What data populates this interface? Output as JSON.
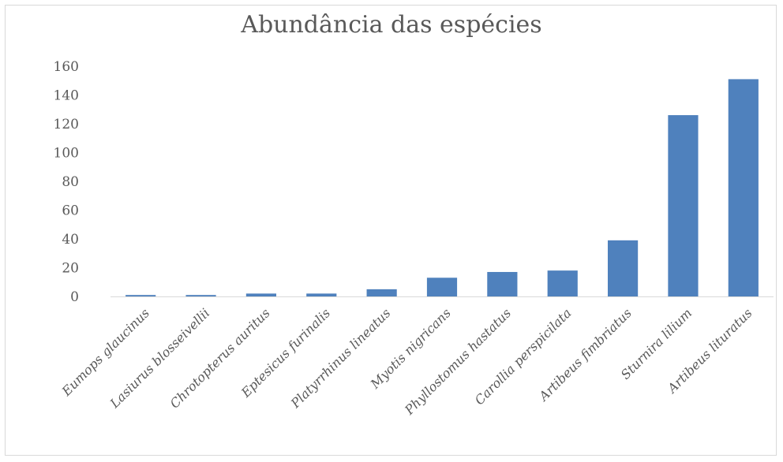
{
  "chart_data": {
    "type": "bar",
    "title": "Abundância das espécies",
    "xlabel": "",
    "ylabel": "",
    "ylim": [
      0,
      160
    ],
    "yticks": [
      "0",
      "20",
      "40",
      "60",
      "80",
      "100",
      "120",
      "140",
      "160"
    ],
    "categories": [
      "Eumops glaucinus",
      "Lasiurus blosseivellii",
      "Chrotopterus auritus",
      "Eptesicus furinalis",
      "Platyrrhinus lineatus",
      "Myotis nigricans",
      "Phyllostomus hastatus",
      "Carollia perspicilata",
      "Artibeus fimbriatus",
      "Sturnira lilium",
      "Artibeus lituratus"
    ],
    "values": [
      1,
      1,
      2,
      2,
      5,
      13,
      17,
      18,
      39,
      126,
      151
    ],
    "grid": false,
    "legend": "none",
    "colors": {
      "bar": "#4f81bd",
      "text": "#595959",
      "axis": "#d9d9d9"
    }
  }
}
